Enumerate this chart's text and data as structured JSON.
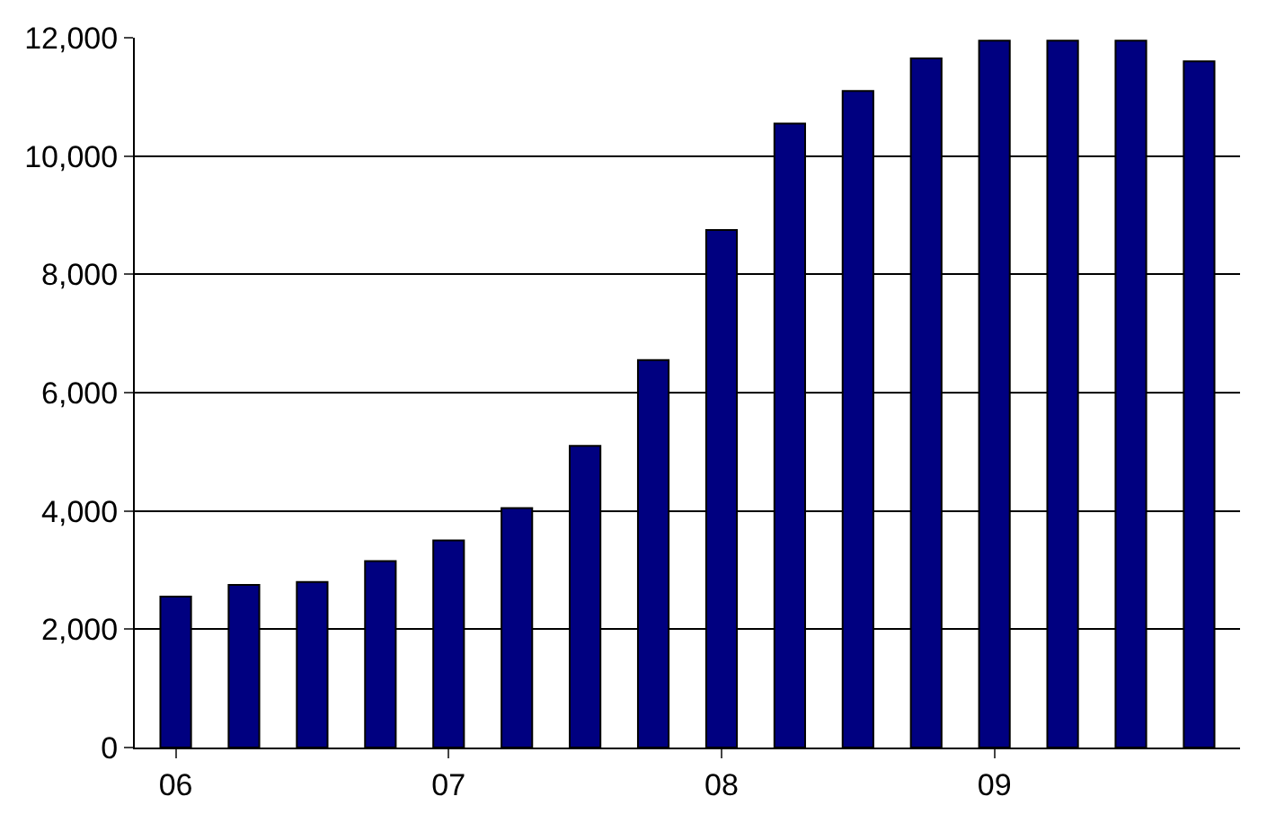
{
  "chart_data": {
    "type": "bar",
    "categories": [
      "06",
      null,
      null,
      null,
      "07",
      null,
      null,
      null,
      "08",
      null,
      null,
      null,
      "09",
      null,
      null,
      null
    ],
    "values": [
      2550,
      2750,
      2800,
      3150,
      3500,
      4050,
      5100,
      6550,
      8750,
      10550,
      11100,
      11650,
      11950,
      11950,
      11950,
      11600
    ],
    "color": "#000080",
    "ylim": [
      0,
      12000
    ],
    "yticks": [
      0,
      {
        "value": 2000,
        "label": "2,000"
      },
      {
        "value": 4000,
        "label": "4,000"
      },
      {
        "value": 6000,
        "label": "6,000"
      },
      {
        "value": 8000,
        "label": "8,000"
      },
      {
        "value": 10000,
        "label": "10,000"
      },
      {
        "value": 12000,
        "label": "12,000"
      }
    ],
    "grid": "y",
    "legend": false
  }
}
